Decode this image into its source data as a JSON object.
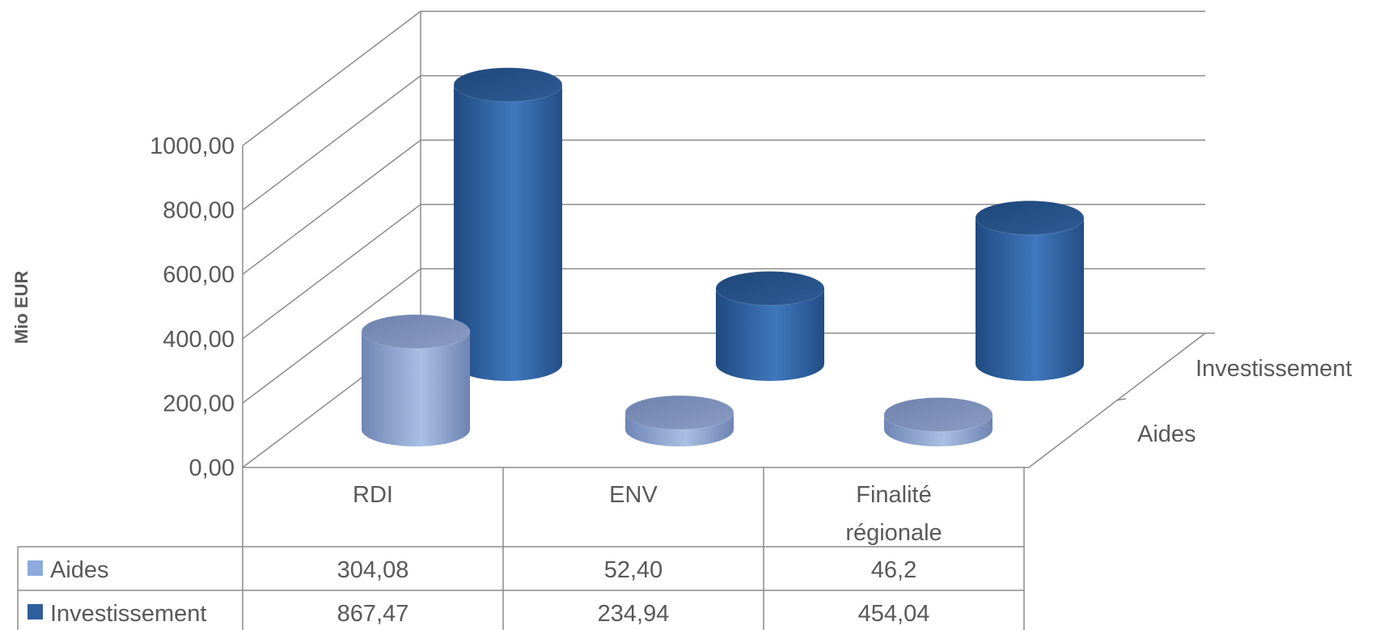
{
  "chart_data": {
    "type": "bar",
    "style": "3d-cylinder",
    "ylabel": "Mio EUR",
    "ylim": [
      0,
      1000
    ],
    "y_ticks": [
      "0,00",
      "200,00",
      "400,00",
      "600,00",
      "800,00",
      "1000,00"
    ],
    "categories": [
      "RDI",
      "ENV",
      "Finalité régionale"
    ],
    "category_lines": [
      [
        "RDI"
      ],
      [
        "ENV"
      ],
      [
        "Finalité",
        "régionale"
      ]
    ],
    "series": [
      {
        "name": "Aides",
        "color": "#8EA9DB",
        "values": [
          304.08,
          52.4,
          46.2
        ],
        "labels": [
          "304,08",
          "52,40",
          "46,2"
        ]
      },
      {
        "name": "Investissement",
        "color": "#2E5E9C",
        "values": [
          867.47,
          234.94,
          454.04
        ],
        "labels": [
          "867,47",
          "234,94",
          "454,04"
        ]
      }
    ],
    "depth_labels": [
      "Investissement",
      "Aides"
    ],
    "data_table": true,
    "grid": true
  }
}
